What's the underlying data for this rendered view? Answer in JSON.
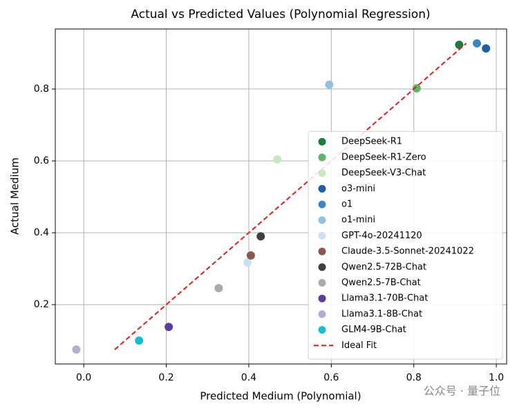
{
  "chart_data": {
    "type": "scatter",
    "title": "Actual vs Predicted Values (Polynomial Regression)",
    "x_label": "Predicted Medium (Polynomial)",
    "y_label": "Actual Medium",
    "xlim": [
      -0.069,
      1.025
    ],
    "ylim": [
      0.035,
      0.967
    ],
    "xticks": [
      {
        "value": 0,
        "label": "0.0"
      },
      0.2,
      0.4,
      0.6,
      0.8,
      {
        "value": 1,
        "label": "1.0"
      }
    ],
    "yticks": [
      0.2,
      0.4,
      0.6,
      0.8
    ],
    "grid": true,
    "legend": "lower right",
    "series": [
      {
        "name": "DeepSeek-R1",
        "color": "#1b7c3d",
        "x": [
          0.91
        ],
        "values": [
          0.923
        ]
      },
      {
        "name": "DeepSeek-R1-Zero",
        "color": "#5cb664",
        "x": [
          0.807
        ],
        "values": [
          0.802
        ]
      },
      {
        "name": "DeepSeek-V3-Chat",
        "color": "#c7e7c0",
        "x": [
          0.469
        ],
        "values": [
          0.604
        ]
      },
      {
        "name": "o3-mini",
        "color": "#1f5fa5",
        "x": [
          0.975
        ],
        "values": [
          0.913
        ]
      },
      {
        "name": "o1",
        "color": "#3a86c4",
        "x": [
          0.953
        ],
        "values": [
          0.927
        ]
      },
      {
        "name": "o1-mini",
        "color": "#94c1e0",
        "x": [
          0.595
        ],
        "values": [
          0.812
        ]
      },
      {
        "name": "GPT-4o-20241120",
        "color": "#cde0f2",
        "x": [
          0.397
        ],
        "values": [
          0.317
        ]
      },
      {
        "name": "Claude-3.5-Sonnet-20241022",
        "color": "#8c564b",
        "x": [
          0.405
        ],
        "values": [
          0.337
        ]
      },
      {
        "name": "Qwen2.5-72B-Chat",
        "color": "#404040",
        "x": [
          0.429
        ],
        "values": [
          0.39
        ]
      },
      {
        "name": "Qwen2.5-7B-Chat",
        "color": "#ababab",
        "x": [
          0.327
        ],
        "values": [
          0.246
        ]
      },
      {
        "name": "Llama3.1-70B-Chat",
        "color": "#5e3c99",
        "x": [
          0.206
        ],
        "values": [
          0.138
        ]
      },
      {
        "name": "Llama3.1-8B-Chat",
        "color": "#b2abd2",
        "x": [
          -0.018
        ],
        "values": [
          0.075
        ]
      },
      {
        "name": "GLM4-9B-Chat",
        "color": "#17becf",
        "x": [
          0.134
        ],
        "values": [
          0.1
        ]
      }
    ],
    "ideal_fit": {
      "name": "Ideal Fit",
      "color": "#e41a1c",
      "x": [
        0.075,
        0.927
      ],
      "values": [
        0.075,
        0.927
      ]
    },
    "watermark": "公众号 · 量子位"
  }
}
